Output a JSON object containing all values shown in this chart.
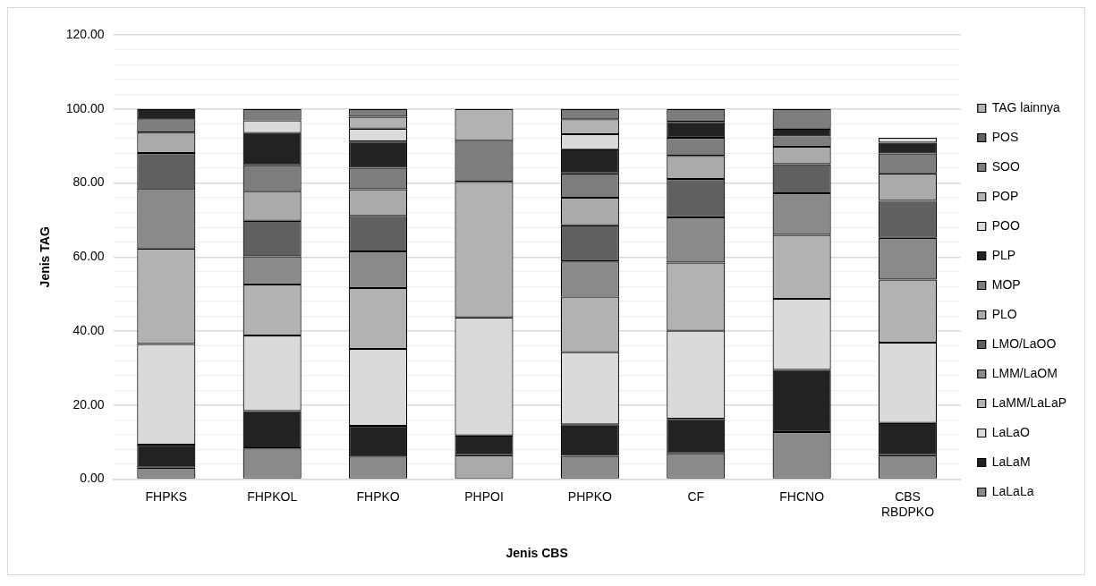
{
  "chart_data": {
    "type": "bar",
    "stacked": true,
    "xlabel": "Jenis CBS",
    "ylabel": "Jenis TAG",
    "categories": [
      "FHPKS",
      "FHPKOL",
      "FHPKO",
      "PHPOI",
      "PHPKO",
      "CF",
      "FHCNO",
      "CBS RBDPKO"
    ],
    "ylim": [
      0,
      120
    ],
    "yticks": [
      {
        "value": 0,
        "label": "0.00"
      },
      {
        "value": 4,
        "label": null
      },
      {
        "value": 8,
        "label": null
      },
      {
        "value": 12,
        "label": null
      },
      {
        "value": 16,
        "label": null
      },
      {
        "value": 20,
        "label": "20.00"
      },
      {
        "value": 24,
        "label": null
      },
      {
        "value": 28,
        "label": null
      },
      {
        "value": 32,
        "label": null
      },
      {
        "value": 36,
        "label": null
      },
      {
        "value": 40,
        "label": "40.00"
      },
      {
        "value": 44,
        "label": null
      },
      {
        "value": 48,
        "label": null
      },
      {
        "value": 52,
        "label": null
      },
      {
        "value": 56,
        "label": null
      },
      {
        "value": 60,
        "label": "60.00"
      },
      {
        "value": 64,
        "label": null
      },
      {
        "value": 68,
        "label": null
      },
      {
        "value": 72,
        "label": null
      },
      {
        "value": 76,
        "label": null
      },
      {
        "value": 80,
        "label": "80.00"
      },
      {
        "value": 84,
        "label": null
      },
      {
        "value": 88,
        "label": null
      },
      {
        "value": 92,
        "label": null
      },
      {
        "value": 96,
        "label": null
      },
      {
        "value": 100,
        "label": "100.00"
      },
      {
        "value": 104,
        "label": null
      },
      {
        "value": 108,
        "label": null
      },
      {
        "value": 112,
        "label": null
      },
      {
        "value": 116,
        "label": null
      },
      {
        "value": 120,
        "label": "120.00"
      }
    ],
    "grid": "y",
    "legend": "right",
    "series": [
      {
        "name": "LaLaLa",
        "color": "#8a8a8a",
        "values": [
          3.1,
          8.3,
          6.1,
          0,
          6.3,
          7.0,
          12.7,
          6.5
        ]
      },
      {
        "name": "LaLaM",
        "color": "#222222",
        "values": [
          6.2,
          10.1,
          8.3,
          0,
          8.5,
          9.3,
          16.8,
          8.7
        ]
      },
      {
        "name": "LaLaO",
        "color": "#dadada",
        "values": [
          27.2,
          20.4,
          20.8,
          0,
          19.5,
          23.8,
          19.2,
          21.7
        ]
      },
      {
        "name": "LaMM/LaLaP",
        "color": "#b2b2b2",
        "values": [
          25.8,
          13.8,
          16.4,
          0,
          15.0,
          18.4,
          17.3,
          17.0
        ]
      },
      {
        "name": "LMM/LaOM",
        "color": "#8a8a8a",
        "values": [
          15.8,
          7.6,
          9.9,
          0,
          9.5,
          12.2,
          11.2,
          11.3
        ]
      },
      {
        "name": "LMO/LaOO",
        "color": "#606060",
        "values": [
          10.0,
          9.6,
          9.6,
          0,
          9.8,
          10.4,
          7.9,
          10.0
        ]
      },
      {
        "name": "PLO",
        "color": "#aaaaaa",
        "values": [
          5.5,
          8.0,
          7.2,
          6.5,
          7.4,
          6.2,
          4.7,
          7.4
        ]
      },
      {
        "name": "MOP",
        "color": "#7d7d7d",
        "values": [
          3.6,
          7.0,
          5.8,
          0,
          6.6,
          4.9,
          2.8,
          5.4
        ]
      },
      {
        "name": "PLP",
        "color": "#222222",
        "values": [
          2.8,
          8.7,
          7.1,
          5.3,
          6.5,
          4.3,
          2.1,
          2.9
        ]
      },
      {
        "name": "POO",
        "color": "#dadada",
        "values": [
          0,
          3.4,
          3.5,
          31.9,
          4.1,
          0,
          0,
          1.3
        ]
      },
      {
        "name": "POP",
        "color": "#b2b2b2",
        "values": [
          0,
          0,
          3.2,
          36.6,
          4.0,
          0,
          0,
          0
        ]
      },
      {
        "name": "SOO",
        "color": "#7d7d7d",
        "values": [
          0,
          3.1,
          2.1,
          11.1,
          2.8,
          3.5,
          5.3,
          0
        ]
      },
      {
        "name": "POS",
        "color": "#606060",
        "values": [
          0,
          0,
          0,
          0,
          0,
          0,
          0,
          0
        ]
      },
      {
        "name": "TAG lainnya",
        "color": "#b2b2b2",
        "values": [
          0,
          0,
          0,
          8.6,
          0,
          0,
          0,
          0
        ]
      }
    ]
  }
}
